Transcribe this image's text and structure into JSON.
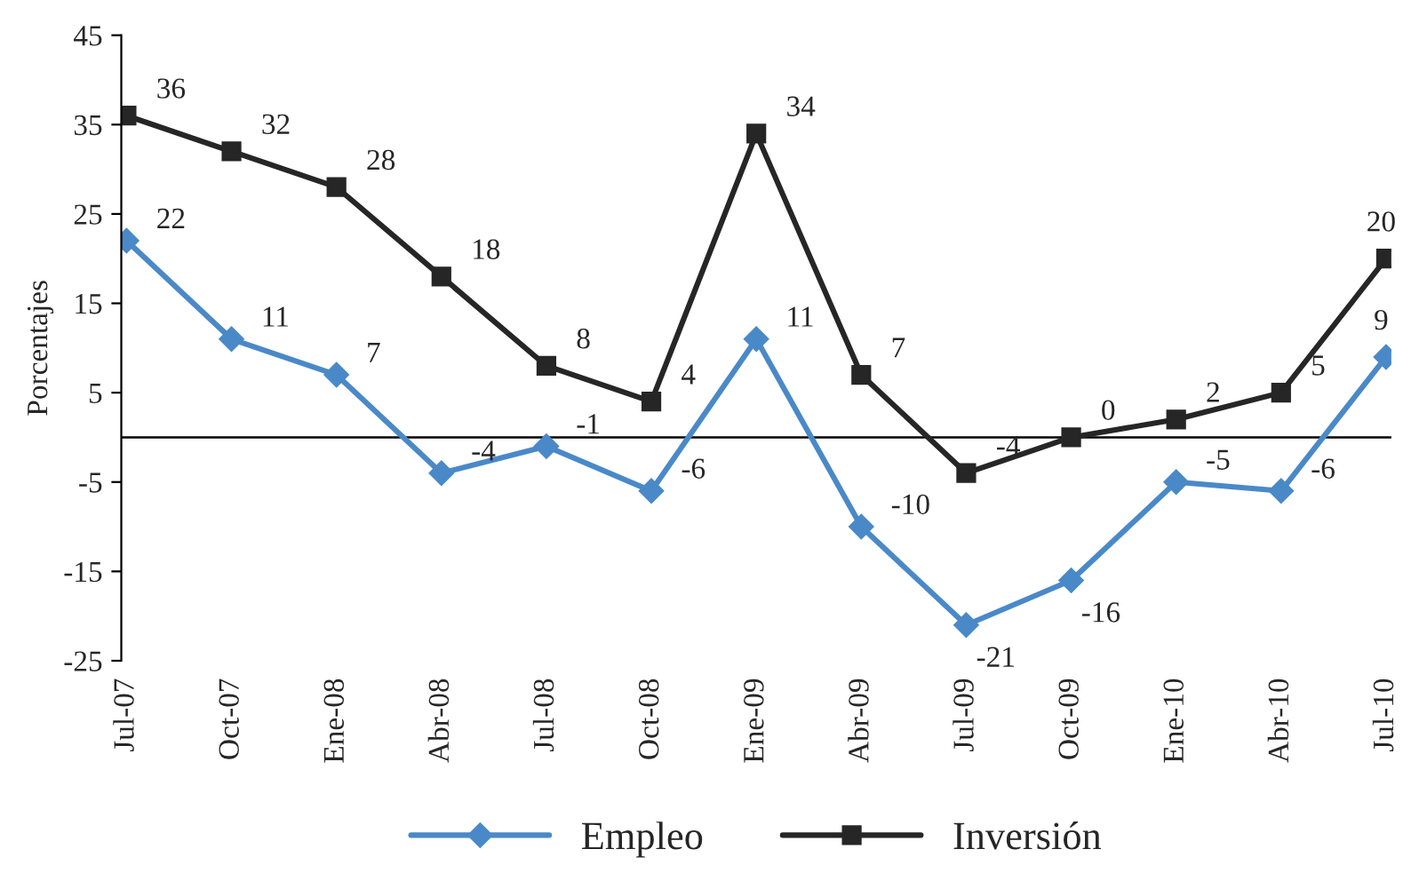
{
  "chart_data": {
    "type": "line",
    "ylabel": "Porcentajes",
    "categories": [
      "Jul-07",
      "Oct-07",
      "Ene-08",
      "Abr-08",
      "Jul-08",
      "Oct-08",
      "Ene-09",
      "Abr-09",
      "Jul-09",
      "Oct-09",
      "Ene-10",
      "Abr-10",
      "Jul-10"
    ],
    "series": [
      {
        "name": "Empleo",
        "color": "#4a89c8",
        "marker": "diamond",
        "values": [
          22,
          11,
          7,
          -4,
          -1,
          -6,
          11,
          -10,
          -21,
          -16,
          -5,
          -6,
          9
        ]
      },
      {
        "name": "Inversión",
        "color": "#262626",
        "marker": "square",
        "values": [
          36,
          32,
          28,
          18,
          8,
          4,
          34,
          7,
          -4,
          0,
          2,
          5,
          20
        ]
      }
    ],
    "ylim": [
      -25,
      45
    ],
    "yticks": [
      -25,
      -15,
      -5,
      5,
      15,
      25,
      35,
      45
    ],
    "ref_lines": [
      {
        "axis": "y",
        "value": 0,
        "color": "#000000"
      }
    ],
    "data_labels": true,
    "legend": "bottom",
    "grid": false,
    "line_style": "solid"
  }
}
